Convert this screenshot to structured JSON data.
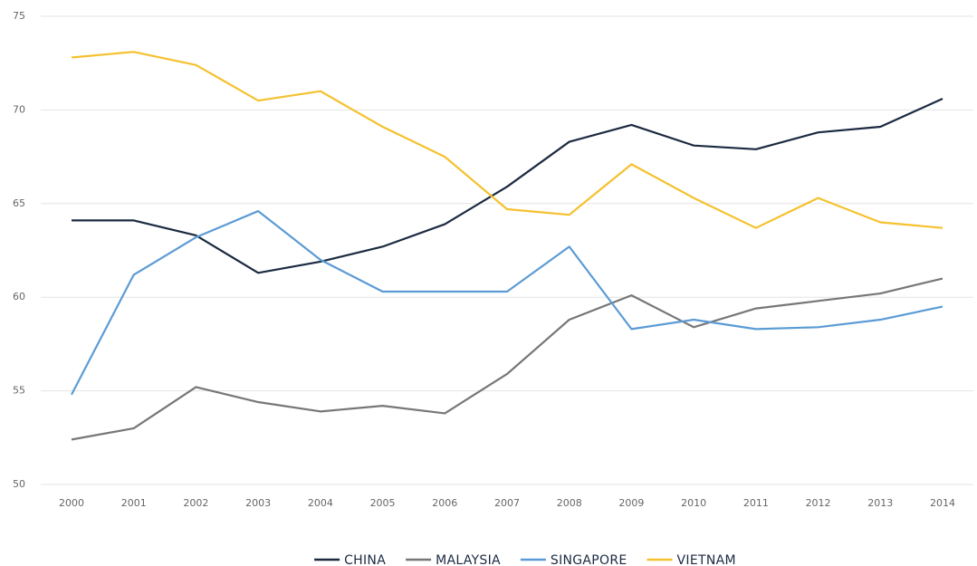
{
  "chart_data": {
    "type": "line",
    "categories": [
      "2000",
      "2001",
      "2002",
      "2003",
      "2004",
      "2005",
      "2006",
      "2007",
      "2008",
      "2009",
      "2010",
      "2011",
      "2012",
      "2013",
      "2014"
    ],
    "series": [
      {
        "name": "CHINA",
        "color": "#1b2a41",
        "values": [
          64.1,
          64.1,
          63.3,
          61.3,
          61.9,
          62.7,
          63.9,
          65.9,
          68.3,
          69.2,
          68.1,
          67.9,
          68.8,
          69.1,
          70.6
        ]
      },
      {
        "name": "MALAYSIA",
        "color": "#777777",
        "values": [
          52.4,
          53.0,
          55.2,
          54.4,
          53.9,
          54.2,
          53.8,
          55.9,
          58.8,
          60.1,
          58.4,
          59.4,
          59.8,
          60.2,
          61.0
        ]
      },
      {
        "name": "SINGAPORE",
        "color": "#5b9bd5",
        "values": [
          54.8,
          61.2,
          63.2,
          64.6,
          62.0,
          60.3,
          60.3,
          60.3,
          62.7,
          58.3,
          58.8,
          58.3,
          58.4,
          58.8,
          59.5
        ]
      },
      {
        "name": "VIETNAM",
        "color": "#f5c12e",
        "values": [
          72.8,
          73.1,
          72.4,
          70.5,
          71.0,
          69.1,
          67.5,
          64.7,
          64.4,
          67.1,
          65.3,
          63.7,
          65.3,
          64.0,
          63.7
        ]
      }
    ],
    "ylim": [
      50,
      75
    ],
    "yticks": [
      50,
      55,
      60,
      65,
      70,
      75
    ],
    "grid": true,
    "legend": "bottom"
  }
}
